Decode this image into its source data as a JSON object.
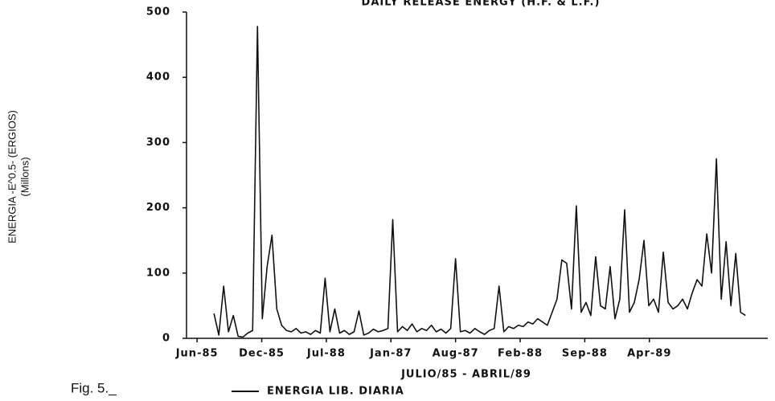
{
  "chart_data": {
    "type": "line",
    "title": "DAILY RELEASE ENERGY (H.F. & L.F.)",
    "ylabel": "ENERGIA -E^0.5- (ERGIOS)",
    "ylabel_sub": "(Millons)",
    "xlabel": "JULIO/85 - ABRIL/89",
    "figure_label": "Fig. 5._",
    "x": [
      56,
      72,
      88,
      104,
      120,
      136,
      152,
      168,
      184,
      200,
      216,
      232,
      248,
      264,
      280,
      296,
      312,
      328,
      344,
      360,
      376,
      392,
      408,
      424,
      440,
      456,
      472,
      488,
      504,
      520,
      536,
      552,
      568,
      584,
      600,
      616,
      632,
      648,
      664,
      680,
      696,
      712,
      728,
      744,
      760,
      776,
      792,
      808,
      824,
      840,
      856,
      872,
      888,
      904,
      920,
      936,
      952,
      968,
      984,
      1000,
      1016,
      1032,
      1048,
      1064,
      1080,
      1096,
      1112,
      1128,
      1144,
      1160,
      1176,
      1192,
      1208,
      1224,
      1240,
      1256,
      1272,
      1288,
      1304,
      1320,
      1336,
      1352,
      1368,
      1384,
      1400,
      1416,
      1432,
      1448,
      1464,
      1480,
      1496,
      1512,
      1528,
      1544,
      1560,
      1576,
      1592,
      1608,
      1624,
      1640,
      1656,
      1672,
      1688,
      1704,
      1720,
      1736,
      1752,
      1768,
      1784,
      1800,
      1816
    ],
    "series": [
      {
        "name": "ENERGIA LIB. DIARIA",
        "color": "#111111",
        "values": [
          38,
          5,
          80,
          10,
          35,
          3,
          2,
          8,
          12,
          478,
          30,
          110,
          158,
          45,
          20,
          12,
          10,
          15,
          8,
          10,
          6,
          12,
          8,
          92,
          10,
          45,
          8,
          12,
          6,
          10,
          42,
          5,
          8,
          14,
          10,
          12,
          15,
          182,
          10,
          18,
          12,
          22,
          10,
          15,
          12,
          20,
          10,
          14,
          8,
          15,
          122,
          10,
          12,
          8,
          15,
          10,
          6,
          12,
          15,
          80,
          10,
          18,
          15,
          20,
          18,
          25,
          22,
          30,
          25,
          20,
          40,
          60,
          120,
          115,
          45,
          203,
          40,
          55,
          35,
          125,
          50,
          45,
          110,
          30,
          60,
          197,
          40,
          55,
          90,
          150,
          50,
          60,
          40,
          132,
          55,
          45,
          50,
          60,
          45,
          70,
          90,
          80,
          160,
          100,
          275,
          60,
          148,
          50,
          130,
          40,
          35
        ]
      }
    ],
    "xlim": [
      -35,
      1890
    ],
    "xticks": [
      {
        "value": 0,
        "label": "Jun-85"
      },
      {
        "value": 214,
        "label": "Dec-85"
      },
      {
        "value": 428,
        "label": "Jul-88"
      },
      {
        "value": 642,
        "label": "Jan-87"
      },
      {
        "value": 856,
        "label": "Aug-87"
      },
      {
        "value": 1070,
        "label": "Feb-88"
      },
      {
        "value": 1284,
        "label": "Sep-88"
      },
      {
        "value": 1498,
        "label": "Apr-89"
      }
    ],
    "ylim": [
      0,
      500
    ],
    "yticks": [
      0,
      100,
      200,
      300,
      400,
      500
    ]
  }
}
